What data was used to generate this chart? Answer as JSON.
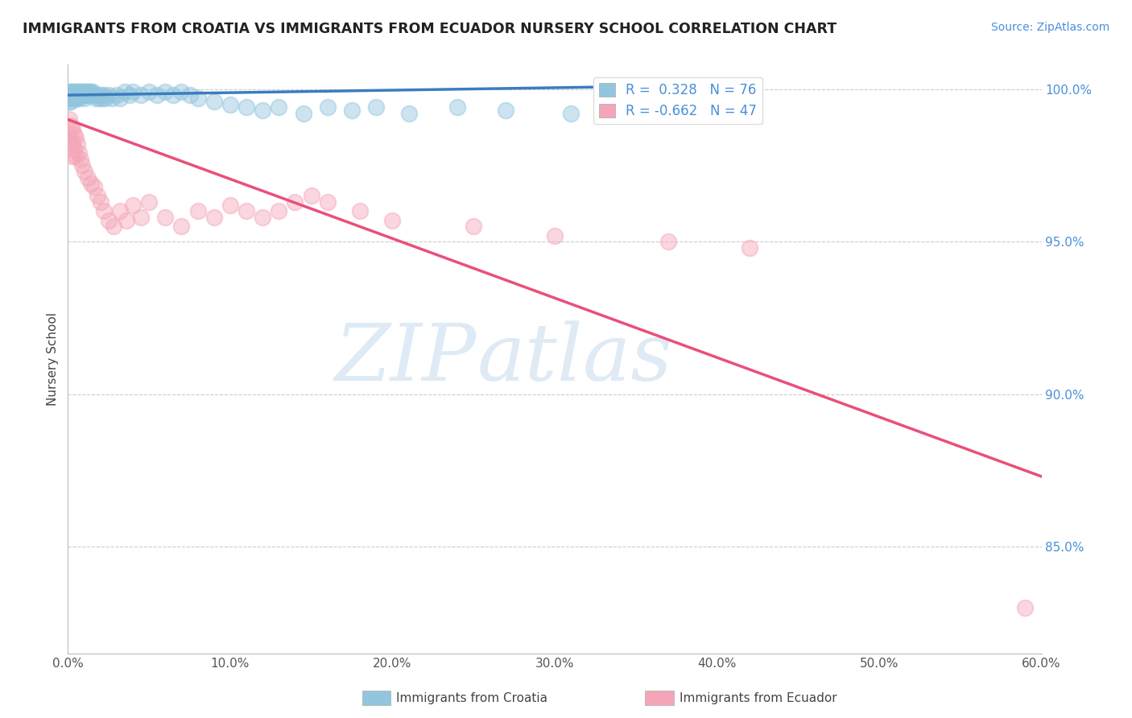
{
  "title": "IMMIGRANTS FROM CROATIA VS IMMIGRANTS FROM ECUADOR NURSERY SCHOOL CORRELATION CHART",
  "source": "Source: ZipAtlas.com",
  "ylabel": "Nursery School",
  "xmin": 0.0,
  "xmax": 0.6,
  "ymin": 0.815,
  "ymax": 1.008,
  "xtick_labels": [
    "0.0%",
    "10.0%",
    "20.0%",
    "30.0%",
    "40.0%",
    "50.0%",
    "60.0%"
  ],
  "xtick_values": [
    0.0,
    0.1,
    0.2,
    0.3,
    0.4,
    0.5,
    0.6
  ],
  "ytick_labels": [
    "85.0%",
    "90.0%",
    "95.0%",
    "100.0%"
  ],
  "ytick_values": [
    0.85,
    0.9,
    0.95,
    1.0
  ],
  "croatia_R": 0.328,
  "croatia_N": 76,
  "ecuador_R": -0.662,
  "ecuador_N": 47,
  "croatia_color": "#92c5de",
  "ecuador_color": "#f4a6b8",
  "croatia_line_color": "#3a7dbf",
  "ecuador_line_color": "#e8507a",
  "watermark_zip": "ZIP",
  "watermark_atlas": "atlas",
  "croatia_scatter_x": [
    0.001,
    0.001,
    0.001,
    0.001,
    0.002,
    0.002,
    0.002,
    0.002,
    0.003,
    0.003,
    0.003,
    0.004,
    0.004,
    0.004,
    0.005,
    0.005,
    0.005,
    0.006,
    0.006,
    0.006,
    0.007,
    0.007,
    0.007,
    0.008,
    0.008,
    0.009,
    0.009,
    0.01,
    0.01,
    0.01,
    0.011,
    0.011,
    0.012,
    0.012,
    0.013,
    0.013,
    0.014,
    0.015,
    0.015,
    0.016,
    0.017,
    0.018,
    0.019,
    0.02,
    0.021,
    0.022,
    0.023,
    0.025,
    0.027,
    0.03,
    0.032,
    0.035,
    0.038,
    0.04,
    0.045,
    0.05,
    0.055,
    0.06,
    0.065,
    0.07,
    0.075,
    0.08,
    0.09,
    0.1,
    0.11,
    0.12,
    0.13,
    0.145,
    0.16,
    0.175,
    0.19,
    0.21,
    0.24,
    0.27,
    0.31,
    0.37
  ],
  "croatia_scatter_y": [
    0.999,
    0.998,
    0.997,
    0.996,
    0.999,
    0.998,
    0.997,
    0.996,
    0.999,
    0.998,
    0.997,
    0.999,
    0.998,
    0.997,
    0.999,
    0.998,
    0.997,
    0.999,
    0.998,
    0.997,
    0.999,
    0.998,
    0.997,
    0.999,
    0.998,
    0.999,
    0.998,
    0.999,
    0.998,
    0.997,
    0.999,
    0.998,
    0.999,
    0.998,
    0.999,
    0.998,
    0.999,
    0.999,
    0.998,
    0.998,
    0.997,
    0.998,
    0.997,
    0.998,
    0.997,
    0.998,
    0.997,
    0.998,
    0.997,
    0.998,
    0.997,
    0.999,
    0.998,
    0.999,
    0.998,
    0.999,
    0.998,
    0.999,
    0.998,
    0.999,
    0.998,
    0.997,
    0.996,
    0.995,
    0.994,
    0.993,
    0.994,
    0.992,
    0.994,
    0.993,
    0.994,
    0.992,
    0.994,
    0.993,
    0.992,
    0.994
  ],
  "ecuador_scatter_x": [
    0.001,
    0.001,
    0.002,
    0.002,
    0.003,
    0.003,
    0.003,
    0.004,
    0.004,
    0.005,
    0.005,
    0.006,
    0.007,
    0.008,
    0.009,
    0.01,
    0.012,
    0.014,
    0.016,
    0.018,
    0.02,
    0.022,
    0.025,
    0.028,
    0.032,
    0.036,
    0.04,
    0.045,
    0.05,
    0.06,
    0.07,
    0.08,
    0.09,
    0.1,
    0.11,
    0.12,
    0.13,
    0.14,
    0.15,
    0.16,
    0.18,
    0.2,
    0.25,
    0.3,
    0.37,
    0.42,
    0.59
  ],
  "ecuador_scatter_y": [
    0.99,
    0.985,
    0.988,
    0.983,
    0.987,
    0.982,
    0.978,
    0.985,
    0.98,
    0.984,
    0.978,
    0.982,
    0.979,
    0.977,
    0.975,
    0.973,
    0.971,
    0.969,
    0.968,
    0.965,
    0.963,
    0.96,
    0.957,
    0.955,
    0.96,
    0.957,
    0.962,
    0.958,
    0.963,
    0.958,
    0.955,
    0.96,
    0.958,
    0.962,
    0.96,
    0.958,
    0.96,
    0.963,
    0.965,
    0.963,
    0.96,
    0.957,
    0.955,
    0.952,
    0.95,
    0.948,
    0.83
  ],
  "croatia_trendline_x": [
    0.0,
    0.37
  ],
  "croatia_trendline_y": [
    0.998,
    1.001
  ],
  "ecuador_trendline_x": [
    0.0,
    0.6
  ],
  "ecuador_trendline_y": [
    0.99,
    0.873
  ]
}
